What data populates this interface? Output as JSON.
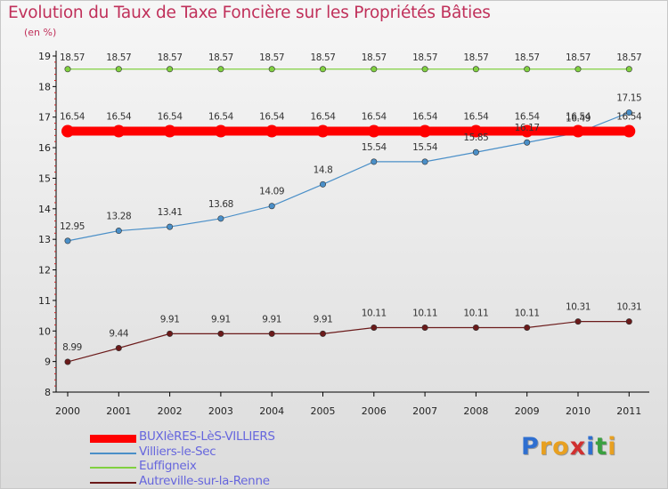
{
  "title": "Evolution du Taux de Taxe Foncière sur les Propriétés Bâties",
  "subtitle": "(en %)",
  "brand": {
    "text": "Proxiti",
    "letters": [
      {
        "ch": "P",
        "color": "#2f6fd0"
      },
      {
        "ch": "r",
        "color": "#e8a020"
      },
      {
        "ch": "o",
        "color": "#e8a020"
      },
      {
        "ch": "x",
        "color": "#d03030"
      },
      {
        "ch": "i",
        "color": "#2f6fd0"
      },
      {
        "ch": "t",
        "color": "#3aa040"
      },
      {
        "ch": "i",
        "color": "#e8a020"
      }
    ]
  },
  "chart_data": {
    "type": "line",
    "title": "Evolution du Taux de Taxe Foncière sur les Propriétés Bâties",
    "ylabel": "(en %)",
    "xlabel": "",
    "x": [
      "2000",
      "2001",
      "2002",
      "2003",
      "2004",
      "2005",
      "2006",
      "2007",
      "2008",
      "2009",
      "2010",
      "2011"
    ],
    "ylim": [
      8,
      19
    ],
    "yticks": [
      "8",
      "9",
      "10",
      "11",
      "12",
      "13",
      "14",
      "15",
      "16",
      "17",
      "18",
      "19"
    ],
    "grid": false,
    "legend_position": "bottom-left",
    "series": [
      {
        "name": "BUXIèRES-LèS-VILLIERS",
        "color": "#ff0000",
        "values": [
          16.54,
          16.54,
          16.54,
          16.54,
          16.54,
          16.54,
          16.54,
          16.54,
          16.54,
          16.54,
          16.54,
          16.54
        ],
        "labels": [
          "16.54",
          "16.54",
          "16.54",
          "16.54",
          "16.54",
          "16.54",
          "16.54",
          "16.54",
          "16.54",
          "16.54",
          "16.54",
          "16.54"
        ]
      },
      {
        "name": "Villiers-le-Sec",
        "color": "#4a8fc8",
        "values": [
          12.95,
          13.28,
          13.41,
          13.68,
          14.09,
          14.8,
          15.54,
          15.54,
          15.85,
          16.17,
          16.49,
          17.15
        ],
        "labels": [
          "12.95",
          "13.28",
          "13.41",
          "13.68",
          "14.09",
          "14.8",
          "15.54",
          "15.54",
          "15.85",
          "16.17",
          "16.49",
          "17.15"
        ]
      },
      {
        "name": "Euffigneix",
        "color": "#80d040",
        "values": [
          18.57,
          18.57,
          18.57,
          18.57,
          18.57,
          18.57,
          18.57,
          18.57,
          18.57,
          18.57,
          18.57,
          18.57
        ],
        "labels": [
          "18.57",
          "18.57",
          "18.57",
          "18.57",
          "18.57",
          "18.57",
          "18.57",
          "18.57",
          "18.57",
          "18.57",
          "18.57",
          "18.57"
        ]
      },
      {
        "name": "Autreville-sur-la-Renne",
        "color": "#6b1a1a",
        "values": [
          8.99,
          9.44,
          9.91,
          9.91,
          9.91,
          9.91,
          10.11,
          10.11,
          10.11,
          10.11,
          10.31,
          10.31
        ],
        "labels": [
          "8.99",
          "9.44",
          "9.91",
          "9.91",
          "9.91",
          "9.91",
          "10.11",
          "10.11",
          "10.11",
          "10.11",
          "10.31",
          "10.31"
        ]
      }
    ]
  }
}
